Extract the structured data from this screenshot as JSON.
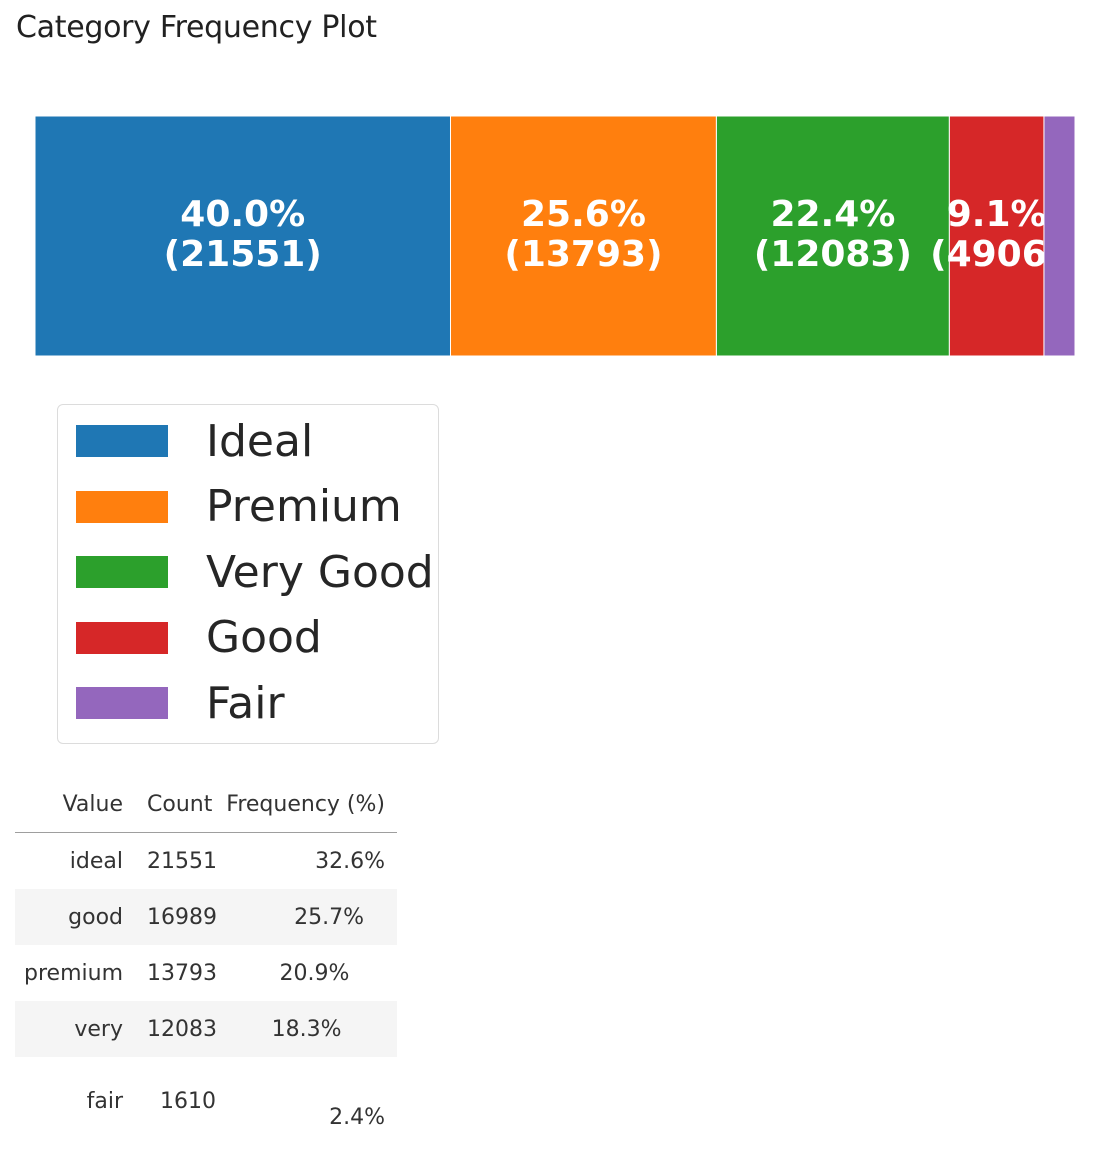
{
  "page": {
    "title": "Category Frequency Plot"
  },
  "chart_data": {
    "type": "bar",
    "orientation": "horizontal-stacked",
    "title": "",
    "xlabel": "",
    "ylabel": "",
    "grid": false,
    "legend_position": "bottom-left",
    "segments": [
      {
        "name": "Ideal",
        "value": 21551,
        "percent": 40.0,
        "label_pct": "40.0%",
        "label_count": "(21551)",
        "color": "#1f77b4",
        "show_label": true
      },
      {
        "name": "Premium",
        "value": 13793,
        "percent": 25.6,
        "label_pct": "25.6%",
        "label_count": "(13793)",
        "color": "#ff7f0e",
        "show_label": true
      },
      {
        "name": "Very Good",
        "value": 12083,
        "percent": 22.4,
        "label_pct": "22.4%",
        "label_count": "(12083)",
        "color": "#2ca02c",
        "show_label": true
      },
      {
        "name": "Good",
        "value": 4906,
        "percent": 9.1,
        "label_pct": "9.1%",
        "label_count": "(4906)",
        "color": "#d62728",
        "show_label": true
      },
      {
        "name": "Fair",
        "value": 1610,
        "percent": 3.0,
        "label_pct": "",
        "label_count": "",
        "color": "#9467bd",
        "show_label": false
      }
    ]
  },
  "table": {
    "headers": {
      "value": "Value",
      "count": "Count",
      "frequency": "Frequency (%)"
    },
    "rows": [
      {
        "value": "ideal",
        "count": "21551",
        "frequency": "32.6%",
        "bar_fraction": 1.0
      },
      {
        "value": "good",
        "count": "16989",
        "frequency": "25.7%",
        "bar_fraction": 0.788
      },
      {
        "value": "premium",
        "count": "13793",
        "frequency": "20.9%",
        "bar_fraction": 0.64
      },
      {
        "value": "very",
        "count": "12083",
        "frequency": "18.3%",
        "bar_fraction": 0.561
      },
      {
        "value": "fair",
        "count": "1610",
        "frequency": "2.4%",
        "bar_fraction": 0.0
      }
    ]
  }
}
